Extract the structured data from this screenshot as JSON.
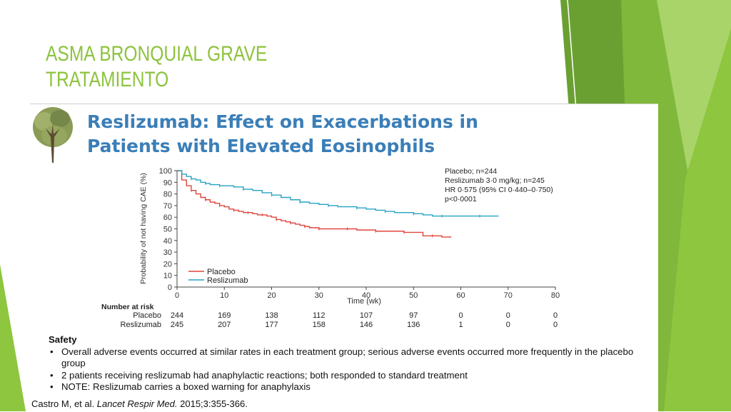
{
  "slide": {
    "title_lines": [
      "ASMA BRONQUIAL GRAVE",
      "TRATAMIENTO"
    ],
    "colors": {
      "title": "#8dc33d",
      "chart_title": "#3a7eb8"
    }
  },
  "chart_data": {
    "type": "line",
    "title_lines": [
      "Reslizumab: Effect on Exacerbations in",
      "Patients with Elevated Eosinophils"
    ],
    "xlabel": "Time (wk)",
    "ylabel": "Probability of not having CAE (%)",
    "xlim": [
      0,
      80
    ],
    "ylim": [
      0,
      100
    ],
    "x_ticks": [
      0,
      10,
      20,
      30,
      40,
      50,
      60,
      70,
      80
    ],
    "y_ticks": [
      0,
      10,
      20,
      30,
      40,
      50,
      60,
      70,
      80,
      90,
      100
    ],
    "grid": false,
    "legend_position": "bottom-left",
    "series": [
      {
        "name": "Placebo",
        "color": "#e0453d",
        "x": [
          0,
          1,
          2,
          3,
          4,
          5,
          6,
          7,
          8,
          9,
          10,
          11,
          12,
          13,
          14,
          15,
          16,
          17,
          18,
          19,
          20,
          21,
          22,
          23,
          24,
          25,
          26,
          27,
          28,
          29,
          30,
          32,
          34,
          36,
          38,
          40,
          42,
          44,
          46,
          48,
          50,
          52,
          54,
          56,
          58
        ],
        "y": [
          100,
          92,
          87,
          83,
          80,
          77,
          75,
          73,
          72,
          70,
          69,
          67,
          66,
          65,
          64,
          64,
          63,
          62,
          62,
          61,
          60,
          58,
          57,
          56,
          55,
          54,
          53,
          52,
          51,
          51,
          50,
          50,
          50,
          50,
          49,
          49,
          48,
          48,
          48,
          47,
          47,
          44,
          44,
          43,
          43
        ]
      },
      {
        "name": "Reslizumab",
        "color": "#27a3c3",
        "x": [
          0,
          1,
          2,
          3,
          4,
          5,
          6,
          7,
          8,
          9,
          10,
          12,
          14,
          16,
          18,
          20,
          22,
          24,
          26,
          28,
          30,
          32,
          34,
          36,
          38,
          40,
          42,
          44,
          46,
          48,
          50,
          52,
          54,
          56,
          58,
          60,
          64,
          68
        ],
        "y": [
          100,
          97,
          95,
          93,
          92,
          90,
          89,
          88,
          88,
          87,
          87,
          86,
          84,
          83,
          81,
          79,
          77,
          75,
          73,
          72,
          71,
          70,
          69,
          69,
          68,
          67,
          66,
          65,
          64,
          64,
          63,
          62,
          61,
          61,
          61,
          61,
          61,
          61
        ]
      }
    ],
    "annotation_lines": [
      "Placebo; n=244",
      "Reslizumab 3·0 mg/kg; n=245",
      "HR 0·575 (95% CI 0·440–0·750)",
      "p<0·0001"
    ],
    "number_at_risk": {
      "header": "Number at risk",
      "rows": [
        {
          "label": "Placebo",
          "values": [
            "244",
            "169",
            "138",
            "112",
            "107",
            "97",
            "0",
            "0",
            "0"
          ]
        },
        {
          "label": "Reslizumab",
          "values": [
            "245",
            "207",
            "177",
            "158",
            "146",
            "136",
            "1",
            "0",
            "0"
          ]
        }
      ]
    }
  },
  "safety": {
    "heading": "Safety",
    "items": [
      "Overall adverse events occurred at similar rates in each treatment group; serious adverse events occurred more frequently in the placebo group",
      "2 patients receiving reslizumab had anaphylactic reactions; both responded to standard treatment",
      "NOTE: Reslizumab carries a boxed warning for anaphylaxis"
    ]
  },
  "citation": {
    "authors": "Castro M, et al.",
    "journal": "Lancet Respir Med.",
    "details": "2015;3:355-366."
  }
}
